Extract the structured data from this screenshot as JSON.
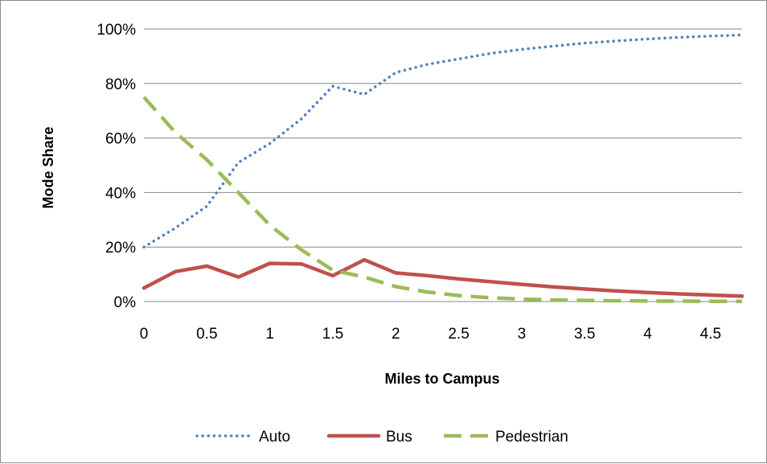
{
  "chart_data": {
    "type": "line",
    "xlabel": "Miles to Campus",
    "ylabel": "Mode Share",
    "xlim": [
      0,
      4.75
    ],
    "ylim": [
      0,
      1
    ],
    "x_ticks": [
      0,
      0.5,
      1,
      1.5,
      2,
      2.5,
      3,
      3.5,
      4,
      4.5
    ],
    "x_tick_labels": [
      "0",
      "0.5",
      "1",
      "1.5",
      "2",
      "2.5",
      "3",
      "3.5",
      "4",
      "4.5"
    ],
    "y_ticks": [
      0,
      0.2,
      0.4,
      0.6,
      0.8,
      1.0
    ],
    "y_tick_labels": [
      "0%",
      "20%",
      "40%",
      "60%",
      "80%",
      "100%"
    ],
    "grid": "horizontal",
    "legend_position": "bottom",
    "x": [
      0,
      0.25,
      0.5,
      0.75,
      1,
      1.25,
      1.5,
      1.75,
      2,
      2.25,
      2.5,
      2.75,
      3,
      3.25,
      3.5,
      3.75,
      4,
      4.25,
      4.5,
      4.75
    ],
    "series": [
      {
        "name": "Auto",
        "color": "#4f81bd",
        "style": "dotted",
        "values": [
          0.2,
          0.27,
          0.35,
          0.51,
          0.58,
          0.67,
          0.79,
          0.76,
          0.84,
          0.87,
          0.89,
          0.91,
          0.925,
          0.937,
          0.948,
          0.956,
          0.963,
          0.969,
          0.974,
          0.978
        ]
      },
      {
        "name": "Bus",
        "color": "#c0504d",
        "style": "solid",
        "values": [
          0.05,
          0.11,
          0.13,
          0.09,
          0.14,
          0.138,
          0.095,
          0.153,
          0.105,
          0.095,
          0.083,
          0.073,
          0.063,
          0.054,
          0.046,
          0.039,
          0.033,
          0.028,
          0.024,
          0.02
        ]
      },
      {
        "name": "Pedestrian",
        "color": "#9bbb59",
        "style": "dashed",
        "values": [
          0.75,
          0.62,
          0.52,
          0.4,
          0.28,
          0.19,
          0.115,
          0.09,
          0.055,
          0.035,
          0.022,
          0.014,
          0.009,
          0.006,
          0.004,
          0.003,
          0.002,
          0.0015,
          0.001,
          0.0008
        ]
      }
    ]
  }
}
